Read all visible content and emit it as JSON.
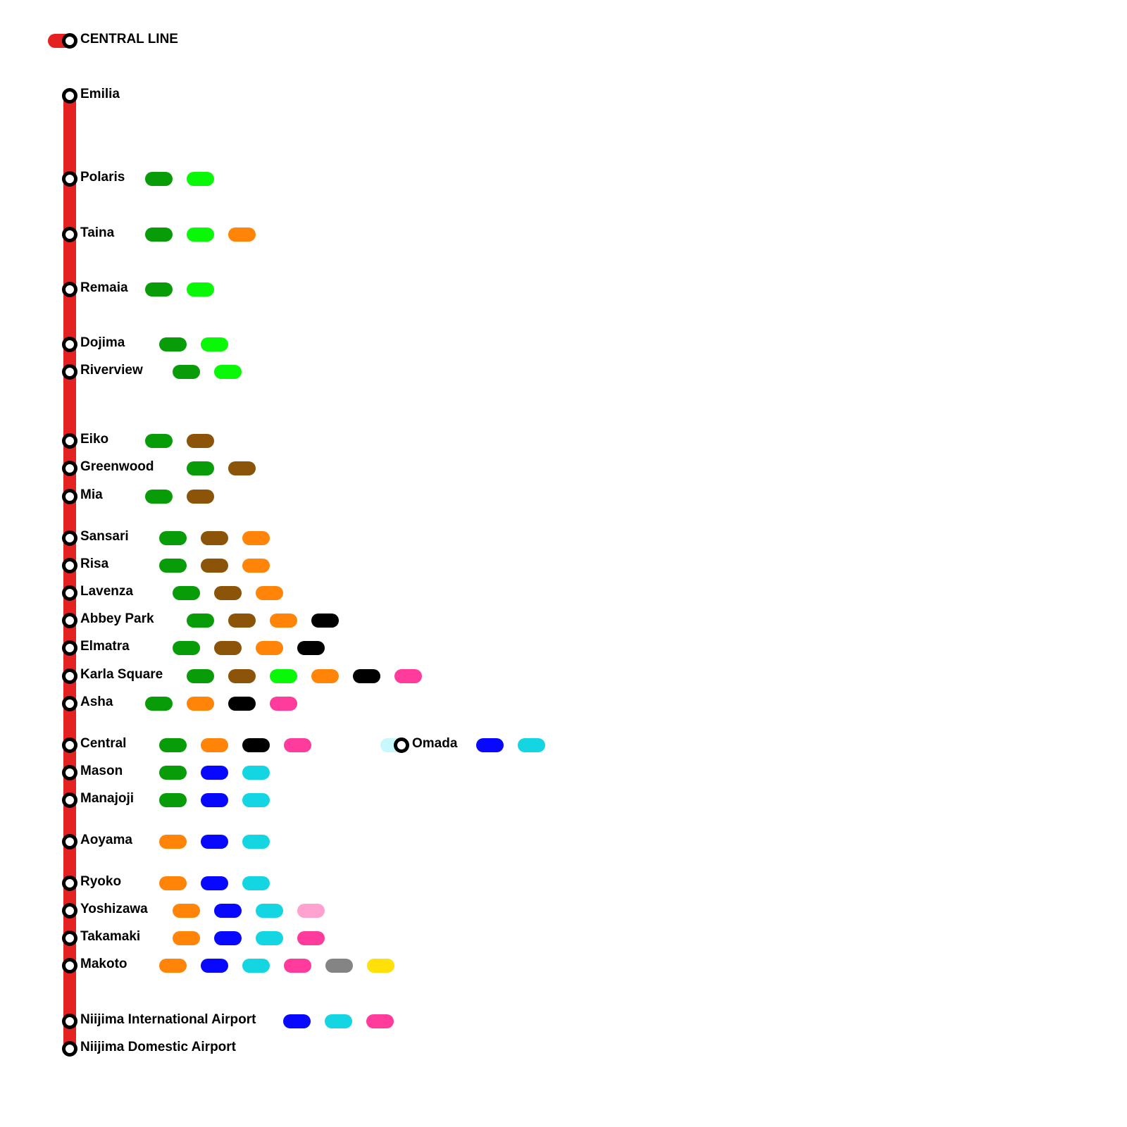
{
  "title": "CENTRAL LINE",
  "line_color": "#e52222",
  "stations": [
    {
      "name": "Emilia",
      "transfers": []
    },
    {
      "name": "Polaris",
      "transfers": [
        "#089c08",
        "#08f808"
      ]
    },
    {
      "name": "Taina",
      "transfers": [
        "#089c08",
        "#08f808",
        "#ff8408"
      ]
    },
    {
      "name": "Remaia",
      "transfers": [
        "#089c08",
        "#08f808"
      ]
    },
    {
      "name": "Dojima",
      "transfers": [
        "#089c08",
        "#08f808"
      ]
    },
    {
      "name": "Riverview",
      "transfers": [
        "#089c08",
        "#08f808"
      ]
    },
    {
      "name": "Eiko",
      "transfers": [
        "#089c08",
        "#8c5408"
      ]
    },
    {
      "name": "Greenwood",
      "transfers": [
        "#089c08",
        "#8c5408"
      ]
    },
    {
      "name": "Mia",
      "transfers": [
        "#089c08",
        "#8c5408"
      ]
    },
    {
      "name": "Sansari",
      "transfers": [
        "#089c08",
        "#8c5408",
        "#ff8408"
      ]
    },
    {
      "name": "Risa",
      "transfers": [
        "#089c08",
        "#8c5408",
        "#ff8408"
      ]
    },
    {
      "name": "Lavenza",
      "transfers": [
        "#089c08",
        "#8c5408",
        "#ff8408"
      ]
    },
    {
      "name": "Abbey Park",
      "transfers": [
        "#089c08",
        "#8c5408",
        "#ff8408",
        "#000000"
      ]
    },
    {
      "name": "Elmatra",
      "transfers": [
        "#089c08",
        "#8c5408",
        "#ff8408",
        "#000000"
      ]
    },
    {
      "name": "Karla Square",
      "transfers": [
        "#089c08",
        "#8c5408",
        "#08f808",
        "#ff8408",
        "#000000",
        "#ff3c9c"
      ]
    },
    {
      "name": "Asha",
      "transfers": [
        "#089c08",
        "#ff8408",
        "#000000",
        "#ff3c9c"
      ]
    },
    {
      "name": "Central",
      "transfers": [
        "#089c08",
        "#ff8408",
        "#000000",
        "#ff3c9c"
      ]
    },
    {
      "name": "Mason",
      "transfers": [
        "#089c08",
        "#0808ff",
        "#14d6e2"
      ]
    },
    {
      "name": "Manajoji",
      "transfers": [
        "#089c08",
        "#0808ff",
        "#14d6e2"
      ]
    },
    {
      "name": "Aoyama",
      "transfers": [
        "#ff8408",
        "#0808ff",
        "#14d6e2"
      ]
    },
    {
      "name": "Ryoko",
      "transfers": [
        "#ff8408",
        "#0808ff",
        "#14d6e2"
      ]
    },
    {
      "name": "Yoshizawa",
      "transfers": [
        "#ff8408",
        "#0808ff",
        "#14d6e2",
        "#ffa2d0"
      ]
    },
    {
      "name": "Takamaki",
      "transfers": [
        "#ff8408",
        "#0808ff",
        "#14d6e2",
        "#ff3c9c"
      ]
    },
    {
      "name": "Makoto",
      "transfers": [
        "#ff8408",
        "#0808ff",
        "#14d6e2",
        "#ff3c9c",
        "#848484",
        "#ffe008"
      ]
    },
    {
      "name": "Niijima International Airport",
      "transfers": [
        "#0808ff",
        "#14d6e2",
        "#ff3c9c"
      ]
    },
    {
      "name": "Niijima Domestic Airport",
      "transfers": []
    }
  ],
  "branch": {
    "name": "Omada",
    "color": "#c8f8fc",
    "transfers": [
      "#0808ff",
      "#14d6e2"
    ]
  }
}
